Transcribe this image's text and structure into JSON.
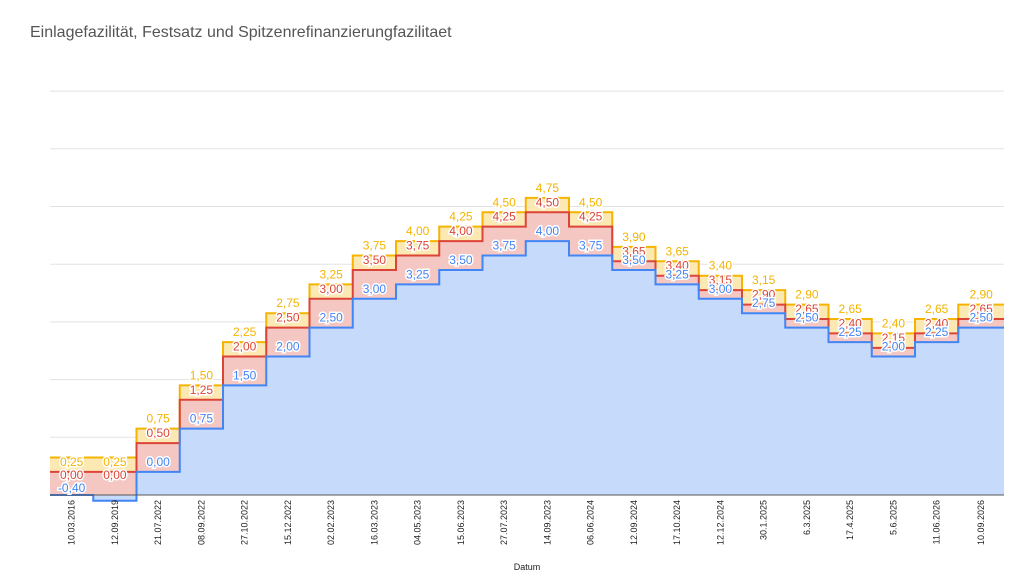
{
  "chart_data": {
    "type": "area",
    "title": "Einlagefazilität, Festsatz und Spitzenrefinanzierungfazilitaet",
    "xlabel": "Datum",
    "ylabel": "",
    "ylim": [
      -0.4,
      7.0
    ],
    "grid": true,
    "legend": "none",
    "step": true,
    "categories": [
      "10.03.2016",
      "12.09.2019",
      "21.07.2022",
      "08.09.2022",
      "27.10.2022",
      "15.12.2022",
      "02.02.2023",
      "16.03.2023",
      "04.05.2023",
      "15.06.2023",
      "27.07.2023",
      "14.09.2023",
      "06.06.2024",
      "12.09.2024",
      "17.10.2024",
      "12.12.2024",
      "30.1.2025",
      "6.3.2025",
      "17.4.2025",
      "5.6.2025",
      "11.06.2026",
      "10.09.2026"
    ],
    "series": [
      {
        "color": "#f4b400",
        "fill": "#fce8b2",
        "values": [
          0.25,
          0.25,
          0.75,
          1.5,
          2.25,
          2.75,
          3.25,
          3.75,
          4.0,
          4.25,
          4.5,
          4.75,
          4.5,
          3.9,
          3.65,
          3.4,
          3.15,
          2.9,
          2.65,
          2.4,
          2.65,
          2.9
        ],
        "labels": [
          "0,25",
          "0,25",
          "0,75",
          "1,50",
          "2,25",
          "2,75",
          "3,25",
          "3,75",
          "4,00",
          "4,25",
          "4,50",
          "4,75",
          "4,50",
          "3,90",
          "3,65",
          "3,40",
          "3,15",
          "2,90",
          "2,65",
          "2,40",
          "2,65",
          "2,90"
        ]
      },
      {
        "color": "#db4437",
        "fill": "#f4c7c3",
        "values": [
          0.0,
          0.0,
          0.5,
          1.25,
          2.0,
          2.5,
          3.0,
          3.5,
          3.75,
          4.0,
          4.25,
          4.5,
          4.25,
          3.65,
          3.4,
          3.15,
          2.9,
          2.65,
          2.4,
          2.15,
          2.4,
          2.65
        ],
        "labels": [
          "0,00",
          "0,00",
          "0,50",
          "1,25",
          "2,00",
          "2,50",
          "3,00",
          "3,50",
          "3,75",
          "4,00",
          "4,25",
          "4,50",
          "4,25",
          "3,65",
          "3,40",
          "3,15",
          "2,90",
          "2,65",
          "2,40",
          "2,15",
          "2,40",
          "2,65"
        ]
      },
      {
        "color": "#4285f4",
        "fill": "#c6dafc",
        "values": [
          -0.4,
          -0.5,
          0.0,
          0.75,
          1.5,
          2.0,
          2.5,
          3.0,
          3.25,
          3.5,
          3.75,
          4.0,
          3.75,
          3.5,
          3.25,
          3.0,
          2.75,
          2.5,
          2.25,
          2.0,
          2.25,
          2.5
        ],
        "labels": [
          "-0,40",
          "",
          "0,00",
          "0,75",
          "1,50",
          "2,00",
          "2,50",
          "3,00",
          "3,25",
          "3,50",
          "3,75",
          "4,00",
          "3,75",
          "3,50",
          "3,25",
          "3,00",
          "2,75",
          "2,50",
          "2,25",
          "2,00",
          "2,25",
          "2,50"
        ]
      }
    ]
  }
}
